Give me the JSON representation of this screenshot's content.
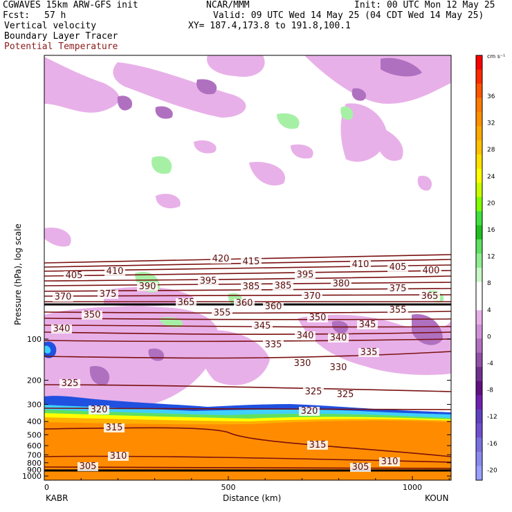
{
  "header": {
    "model": "CGWAVES 15km ARW-GFS init",
    "org": "NCAR/MMM",
    "init": "Init: 00 UTC Mon 12 May 25",
    "fcst_label": "Fcst:",
    "fcst_value": "57 h",
    "valid": "Valid: 09 UTC Wed 14 May 25 (04 CDT Wed 14 May 25)",
    "field1": "Vertical velocity",
    "field2": "Boundary Layer Tracer",
    "field3": "Potential Temperature",
    "xy": "XY= 187.4,173.8 to 191.8,100.1"
  },
  "chart_data": {
    "type": "heatmap",
    "xlabel": "Distance (km)",
    "ylabel": "Pressure (hPa), log scale",
    "x_ticks": [
      "0",
      "500",
      "1000"
    ],
    "x_endpoints": [
      "KABR",
      "KOUN"
    ],
    "y_ticks": [
      "100",
      "200",
      "300",
      "400",
      "500",
      "600",
      "700",
      "800",
      "900",
      "1000"
    ],
    "colorbar_unit": "cm s⁻¹",
    "colorbar_ticks": [
      "36",
      "32",
      "28",
      "24",
      "20",
      "16",
      "12",
      "8",
      "4",
      "0",
      "-4",
      "-8",
      "-12",
      "-16",
      "-20"
    ],
    "colorbar_colors": [
      "#ff0000",
      "#ff2a00",
      "#ff5500",
      "#ff7a00",
      "#ff9000",
      "#ffa800",
      "#ffc000",
      "#ffe000",
      "#ffff00",
      "#c8ff00",
      "#80ff00",
      "#40e040",
      "#20c020",
      "#60e060",
      "#90ee90",
      "#c8f7c8",
      "#ffffff",
      "#ffffff",
      "#e8b0e8",
      "#d090d8",
      "#b070c0",
      "#9050a8",
      "#703090",
      "#601080",
      "#7020b0",
      "#6040c0",
      "#7050d0",
      "#7a70e0",
      "#8a8af0",
      "#9aa0ff"
    ],
    "contour_labels": [
      "420",
      "415",
      "410",
      "410",
      "405",
      "405",
      "400",
      "395",
      "395",
      "390",
      "385",
      "385",
      "380",
      "375",
      "375",
      "370",
      "370",
      "365",
      "365",
      "360",
      "360",
      "355",
      "355",
      "350",
      "350",
      "345",
      "345",
      "340",
      "340",
      "340",
      "335",
      "335",
      "330",
      "330",
      "325",
      "325",
      "325",
      "320",
      "320",
      "315",
      "315",
      "310",
      "310",
      "305",
      "305"
    ]
  }
}
